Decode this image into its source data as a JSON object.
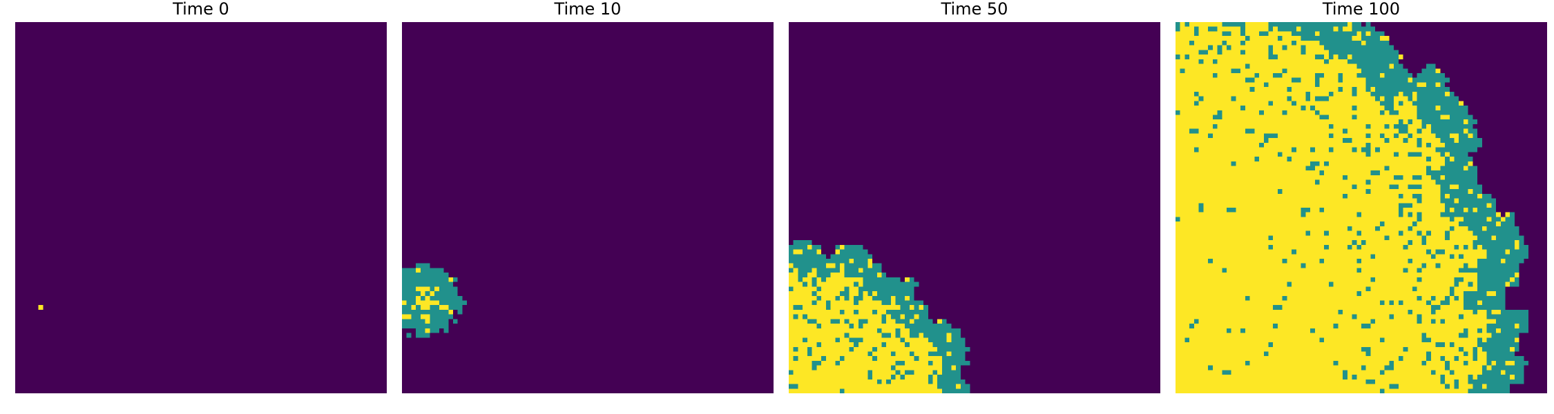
{
  "colors": {
    "empty": "#440154",
    "middle": "#21918c",
    "full": "#fde725"
  },
  "chart_data": [
    {
      "type": "heatmap",
      "title": "Time 0",
      "grid_size": [
        80,
        80
      ],
      "cmap": "viridis",
      "levels": [
        0,
        1,
        2
      ],
      "front": {
        "center_col": 5.5,
        "center_row": 61.5,
        "radius": 0.6,
        "rim_width": 0.1,
        "jitter": 0,
        "interior_density": 1.0
      }
    },
    {
      "type": "heatmap",
      "title": "Time 10",
      "grid_size": [
        80,
        80
      ],
      "cmap": "viridis",
      "levels": [
        0,
        1,
        2
      ],
      "front": {
        "center_col": 5,
        "center_row": 60,
        "radius": 7.5,
        "rim_width": 4.5,
        "jitter": 1.2,
        "interior_density": 0.35
      }
    },
    {
      "type": "heatmap",
      "title": "Time 50",
      "grid_size": [
        80,
        80
      ],
      "cmap": "viridis",
      "levels": [
        0,
        1,
        2
      ],
      "front": {
        "center_col": 0,
        "center_row": 88,
        "radius": 40,
        "rim_width": 6,
        "jitter": 2.5,
        "interior_density": 0.7
      }
    },
    {
      "type": "heatmap",
      "title": "Time 100",
      "grid_size": [
        80,
        80
      ],
      "cmap": "viridis",
      "levels": [
        0,
        1,
        2
      ],
      "front": {
        "center_col": 0,
        "center_row": 62,
        "radius": 74,
        "rim_width": 9,
        "jitter": 3,
        "interior_density": 0.78
      }
    }
  ]
}
